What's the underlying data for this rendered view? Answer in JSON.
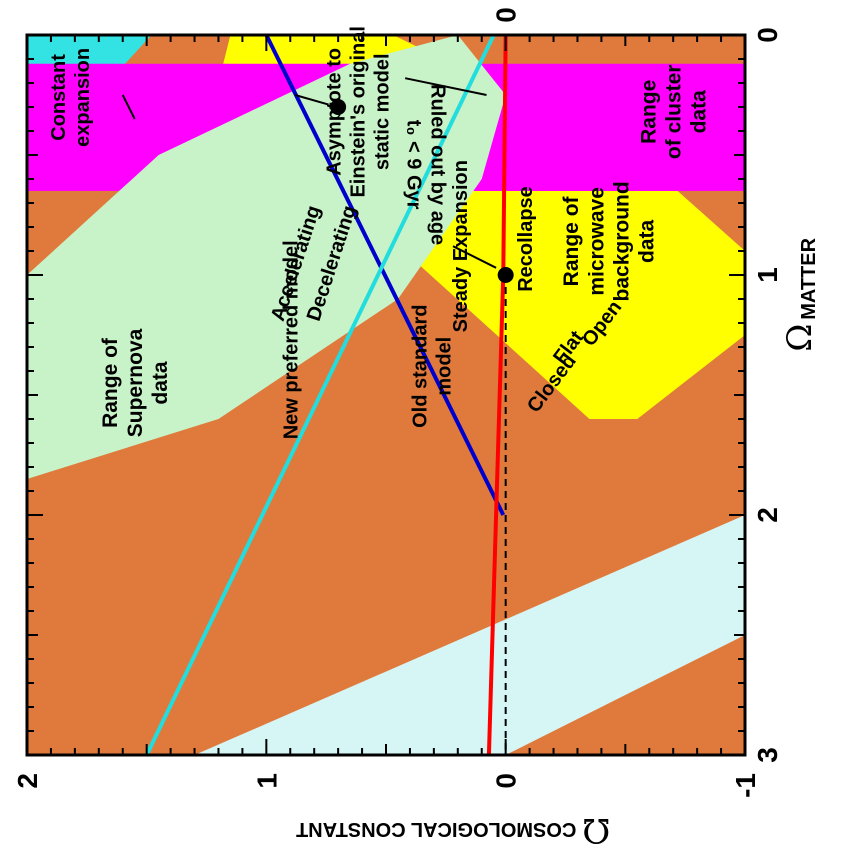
{
  "chart_data": {
    "type": "area",
    "xlabel": {
      "symbol": "Ω",
      "text": "MATTER"
    },
    "ylabel": {
      "symbol": "Ω",
      "text": "COSMOLOGICAL CONSTANT"
    },
    "xlim": [
      0,
      3
    ],
    "ylim": [
      -1,
      2
    ],
    "grid": false,
    "x_ticks": [
      "0",
      "1",
      "2",
      "3"
    ],
    "y_ticks": [
      "-1",
      "0",
      "1",
      "2"
    ],
    "lines": [
      {
        "id": "flat",
        "color": "#0000cc",
        "points": [
          [
            0,
            1
          ],
          [
            2,
            0.01
          ]
        ]
      },
      {
        "id": "accel-decel",
        "color": "#22dddd",
        "points": [
          [
            0,
            0.05
          ],
          [
            3,
            1.5
          ]
        ]
      },
      {
        "id": "steady-expansion",
        "color": "#ff0000",
        "points": [
          [
            0,
            0
          ],
          [
            1,
            0.01
          ],
          [
            2,
            0.04
          ],
          [
            3,
            0.07
          ]
        ]
      },
      {
        "id": "recollapse",
        "color": "#000000",
        "dashed": true,
        "points": [
          [
            1,
            0
          ],
          [
            3,
            0
          ]
        ]
      }
    ],
    "regions": [
      {
        "id": "no-big-bang",
        "color": "#e07a3c",
        "points": [
          [
            0,
            2
          ],
          [
            3,
            2
          ],
          [
            3,
            1.3
          ],
          [
            1.8,
            -0.28
          ],
          [
            1.2,
            -1
          ],
          [
            0,
            -1
          ]
        ]
      },
      {
        "id": "ruled-out",
        "color": "#d6f5f5",
        "points": [
          [
            3,
            2
          ],
          [
            3,
            0
          ],
          [
            2.5,
            -1
          ],
          [
            2,
            -1
          ],
          [
            3,
            1.3
          ]
        ]
      },
      {
        "id": "corner",
        "color": "#33e3e3",
        "points": [
          [
            0,
            2
          ],
          [
            0.2,
            2
          ],
          [
            0.13,
            1.6
          ],
          [
            0,
            1.48
          ]
        ]
      },
      {
        "id": "microwave",
        "color": "#ffff00",
        "points": [
          [
            0,
            1.15
          ],
          [
            0.2,
            1.2
          ],
          [
            1.6,
            -0.35
          ],
          [
            1.6,
            -0.55
          ],
          [
            1.25,
            -1
          ],
          [
            0.9,
            -1
          ],
          [
            0.5,
            -0.55
          ],
          [
            0,
            0.47
          ]
        ]
      },
      {
        "id": "cluster",
        "color": "#ff00ff",
        "points": [
          [
            0.12,
            2
          ],
          [
            0.65,
            2
          ],
          [
            0.65,
            -1
          ],
          [
            0.12,
            -1
          ]
        ]
      },
      {
        "id": "supernova",
        "color": "#c8f2c8",
        "points": [
          [
            0,
            0.2
          ],
          [
            0.12,
            0.65
          ],
          [
            0.5,
            1.45
          ],
          [
            1,
            2
          ],
          [
            1.85,
            2
          ],
          [
            1.6,
            1.2
          ],
          [
            1.1,
            0.45
          ],
          [
            0.6,
            0.1
          ],
          [
            0.25,
            0.0
          ]
        ]
      }
    ],
    "points": [
      {
        "id": "new-preferred",
        "x": 0.3,
        "y": 0.7
      },
      {
        "id": "old-standard",
        "x": 1.0,
        "y": 0.0
      }
    ],
    "annotations": [
      {
        "id": "constant-expansion",
        "lines": [
          "Constant",
          "expansion"
        ]
      },
      {
        "id": "asymptote",
        "lines": [
          "Asymptote to",
          "Einstein's original",
          "static model"
        ]
      },
      {
        "id": "ruled-out",
        "lines": [
          "Ruled out by age",
          "t₀ < 9 Gyr"
        ]
      },
      {
        "id": "accelerating",
        "lines": [
          "Accelerating"
        ]
      },
      {
        "id": "decelerating",
        "lines": [
          "Decelerating"
        ]
      },
      {
        "id": "steady-expansion",
        "lines": [
          "Steady Expansion"
        ]
      },
      {
        "id": "recollapse",
        "lines": [
          "Recollapse"
        ]
      },
      {
        "id": "supernova",
        "lines": [
          "Range of",
          "Supernova",
          "data"
        ]
      },
      {
        "id": "closed",
        "lines": [
          "Closed"
        ]
      },
      {
        "id": "flat",
        "lines": [
          "Flat"
        ]
      },
      {
        "id": "open",
        "lines": [
          "Open"
        ]
      },
      {
        "id": "old-standard",
        "lines": [
          "Old standard",
          "model"
        ]
      },
      {
        "id": "new-preferred",
        "lines": [
          "New preferred model"
        ]
      },
      {
        "id": "microwave",
        "lines": [
          "Range of",
          "microwave",
          "background",
          "data"
        ]
      },
      {
        "id": "cluster",
        "lines": [
          "Range",
          "of cluster",
          "data"
        ]
      }
    ]
  }
}
